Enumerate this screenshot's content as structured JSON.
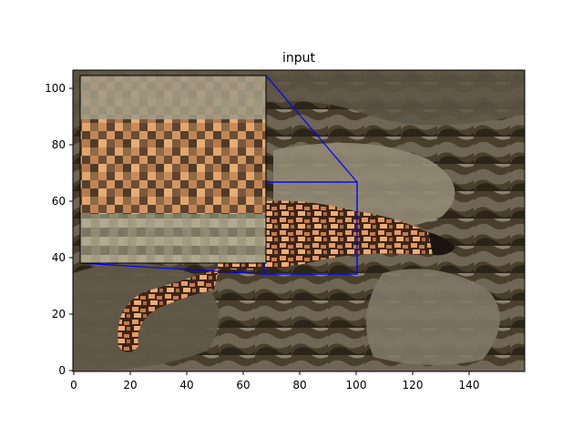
{
  "figure": {
    "title": "input"
  },
  "axes": {
    "x_ticks": [
      "0",
      "20",
      "40",
      "60",
      "80",
      "100",
      "120",
      "140"
    ],
    "y_ticks": [
      "0",
      "20",
      "40",
      "60",
      "80",
      "100"
    ],
    "xlim": [
      0,
      160
    ],
    "ylim": [
      0,
      107
    ]
  },
  "image": {
    "description_icon": "gila-monster-photo",
    "zoom_region": {
      "x0": 67,
      "x1": 100,
      "y0": 34,
      "y1": 67
    },
    "inset_extent": {
      "x0": 2,
      "x1": 68,
      "y0": 38,
      "y1": 105
    }
  },
  "colors": {
    "indicator": "#0000ff",
    "axis": "#000000"
  }
}
